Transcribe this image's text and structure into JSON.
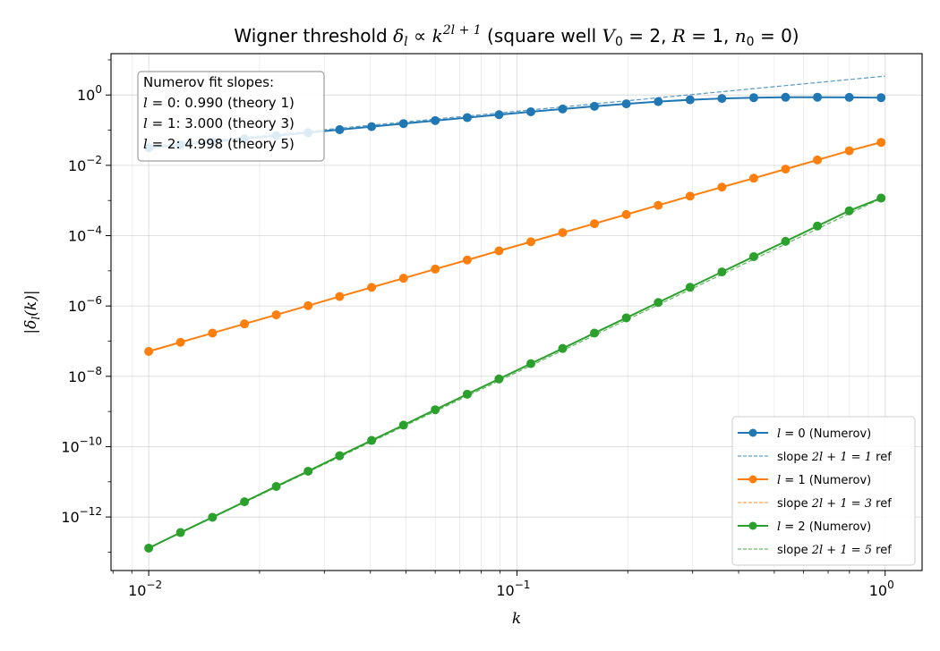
{
  "chart_data": {
    "type": "line",
    "title": "Wigner threshold δ_l ∝ k^(2l+1)  (square well V0 = 2, R = 1, n0 = 0)",
    "title_parts": {
      "prefix": "Wigner threshold ",
      "delta": "δ",
      "sub_l": "l",
      "prop": " ∝ ",
      "k": "k",
      "exponent": "2l + 1",
      "paren": "  (square well ",
      "V": "V",
      "V_sub": "0",
      "V_eq": " = 2, ",
      "R": "R",
      "R_eq": " = 1, ",
      "n": "n",
      "n_sub": "0",
      "n_eq": " = 0)"
    },
    "xlabel": "k",
    "ylabel": "|δl(k)|",
    "ylabel_parts": {
      "open": "|",
      "delta": "δ",
      "sub": "l",
      "arg": "(k)",
      "close": "|"
    },
    "xscale": "log",
    "yscale": "log",
    "xlim": [
      0.0079,
      1.26
    ],
    "ylim": [
      3e-14,
      15
    ],
    "xticks": [
      {
        "value": 0.01,
        "base": "10",
        "exp": "−2"
      },
      {
        "value": 0.1,
        "base": "10",
        "exp": "−1"
      },
      {
        "value": 1,
        "base": "10",
        "exp": "0"
      }
    ],
    "yticks": [
      {
        "value": 1,
        "base": "10",
        "exp": "0"
      },
      {
        "value": 0.01,
        "base": "10",
        "exp": "−2"
      },
      {
        "value": 0.0001,
        "base": "10",
        "exp": "−4"
      },
      {
        "value": 1e-06,
        "base": "10",
        "exp": "−6"
      },
      {
        "value": 1e-08,
        "base": "10",
        "exp": "−8"
      },
      {
        "value": 1e-10,
        "base": "10",
        "exp": "−10"
      },
      {
        "value": 1e-12,
        "base": "10",
        "exp": "−12"
      }
    ],
    "grid": true,
    "legend_position": "lower-right",
    "x": [
      0.01,
      0.0122,
      0.0149,
      0.0182,
      0.0222,
      0.0271,
      0.033,
      0.0403,
      0.0492,
      0.06,
      0.0733,
      0.0894,
      0.1091,
      0.1331,
      0.1624,
      0.1982,
      0.242,
      0.2953,
      0.3603,
      0.4397,
      0.5365,
      0.6548,
      0.799,
      0.975
    ],
    "series": [
      {
        "name": "l = 0 (Numerov)",
        "name_parts": {
          "var": "l",
          "rest": " = 0 (Numerov)"
        },
        "color": "#1f77b4",
        "style": "solid-markers",
        "values": [
          0.0314,
          0.0383,
          0.0467,
          0.057,
          0.0696,
          0.0849,
          0.1035,
          0.1262,
          0.1538,
          0.1871,
          0.2274,
          0.2756,
          0.3331,
          0.4005,
          0.4773,
          0.562,
          0.649,
          0.73,
          0.796,
          0.84,
          0.862,
          0.866,
          0.858,
          0.84
        ]
      },
      {
        "name": "slope 2l + 1 = 1 ref",
        "name_parts": {
          "prefix": "slope ",
          "expr": "2l + 1 = 1",
          "suffix": " ref"
        },
        "color": "#1f77b4",
        "style": "dashed",
        "x": [
          0.01,
          1
        ],
        "values": [
          0.0345,
          3.45
        ]
      },
      {
        "name": "l = 1 (Numerov)",
        "name_parts": {
          "var": "l",
          "rest": " = 1 (Numerov)"
        },
        "color": "#ff7f0e",
        "style": "solid-markers",
        "values": [
          5.1e-08,
          9.3e-08,
          1.7e-07,
          3.1e-07,
          5.6e-07,
          1.02e-06,
          1.86e-06,
          3.38e-06,
          6.15e-06,
          1.12e-05,
          2.03e-05,
          3.7e-05,
          6.7e-05,
          0.000122,
          0.00022,
          0.0004,
          0.00073,
          0.00133,
          0.0024,
          0.0043,
          0.0078,
          0.0142,
          0.026,
          0.045
        ]
      },
      {
        "name": "slope 2l + 1 = 3 ref",
        "name_parts": {
          "prefix": "slope ",
          "expr": "2l + 1 = 3",
          "suffix": " ref"
        },
        "color": "#ff7f0e",
        "style": "dashed",
        "x": [
          0.01,
          1
        ],
        "values": [
          5.1e-08,
          0.051
        ]
      },
      {
        "name": "l = 2 (Numerov)",
        "name_parts": {
          "var": "l",
          "rest": " = 2 (Numerov)"
        },
        "color": "#2ca02c",
        "style": "solid-markers",
        "values": [
          1.3e-13,
          3.6e-13,
          9.8e-13,
          2.7e-12,
          7.4e-12,
          2e-11,
          5.5e-11,
          1.5e-10,
          4.1e-10,
          1.12e-09,
          3.1e-09,
          8.4e-09,
          2.3e-08,
          6.2e-08,
          1.7e-07,
          4.6e-07,
          1.26e-06,
          3.4e-06,
          9.3e-06,
          2.54e-05,
          6.9e-05,
          0.000188,
          0.00051,
          0.00117
        ]
      },
      {
        "name": "slope 2l + 1 = 5 ref",
        "name_parts": {
          "prefix": "slope ",
          "expr": "2l + 1 = 5",
          "suffix": " ref"
        },
        "color": "#2ca02c",
        "style": "dashed",
        "x": [
          0.01,
          1
        ],
        "values": [
          1.3e-13,
          0.0013
        ]
      }
    ],
    "annotation": {
      "title": "Numerov fit slopes:",
      "lines": [
        {
          "var": "l",
          "rest": " = 0: 0.990  (theory 1)"
        },
        {
          "var": "l",
          "rest": " = 1: 3.000  (theory 3)"
        },
        {
          "var": "l",
          "rest": " = 2: 4.998  (theory 5)"
        }
      ]
    }
  }
}
